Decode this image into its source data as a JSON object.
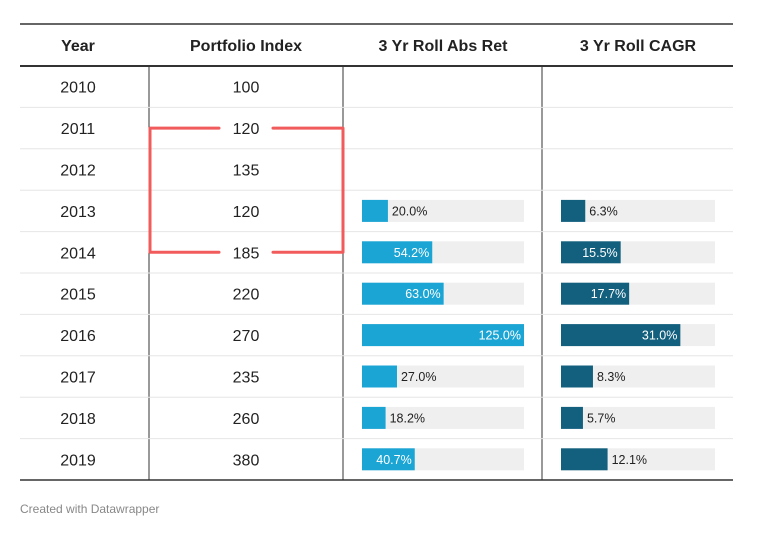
{
  "chart_data": {
    "type": "table",
    "columns": [
      "Year",
      "Portfolio Index",
      "3 Yr Roll Abs Ret",
      "3 Yr Roll CAGR"
    ],
    "rows": [
      {
        "year": "2010",
        "index": "100",
        "abs_ret": null,
        "abs_ret_label": "",
        "cagr": null,
        "cagr_label": ""
      },
      {
        "year": "2011",
        "index": "120",
        "abs_ret": null,
        "abs_ret_label": "",
        "cagr": null,
        "cagr_label": ""
      },
      {
        "year": "2012",
        "index": "135",
        "abs_ret": null,
        "abs_ret_label": "",
        "cagr": null,
        "cagr_label": ""
      },
      {
        "year": "2013",
        "index": "120",
        "abs_ret": 20.0,
        "abs_ret_label": "20.0%",
        "cagr": 6.3,
        "cagr_label": "6.3%"
      },
      {
        "year": "2014",
        "index": "185",
        "abs_ret": 54.2,
        "abs_ret_label": "54.2%",
        "cagr": 15.5,
        "cagr_label": "15.5%"
      },
      {
        "year": "2015",
        "index": "220",
        "abs_ret": 63.0,
        "abs_ret_label": "63.0%",
        "cagr": 17.7,
        "cagr_label": "17.7%"
      },
      {
        "year": "2016",
        "index": "270",
        "abs_ret": 125.0,
        "abs_ret_label": "125.0%",
        "cagr": 31.0,
        "cagr_label": "31.0%"
      },
      {
        "year": "2017",
        "index": "235",
        "abs_ret": 27.0,
        "abs_ret_label": "27.0%",
        "cagr": 8.3,
        "cagr_label": "8.3%"
      },
      {
        "year": "2018",
        "index": "260",
        "abs_ret": 18.2,
        "abs_ret_label": "18.2%",
        "cagr": 5.7,
        "cagr_label": "5.7%"
      },
      {
        "year": "2019",
        "index": "380",
        "abs_ret": 40.7,
        "abs_ret_label": "40.7%",
        "cagr": 12.1,
        "cagr_label": "12.1%"
      }
    ],
    "abs_ret_max": 125.0,
    "cagr_max": 40.0,
    "highlight_years": [
      "2011",
      "2014"
    ],
    "colors": {
      "abs_ret_bar": "#1ba5d4",
      "cagr_bar": "#13607e",
      "bar_track": "#efefef",
      "highlight": "#f25b5b"
    }
  },
  "footer": "Created with Datawrapper"
}
